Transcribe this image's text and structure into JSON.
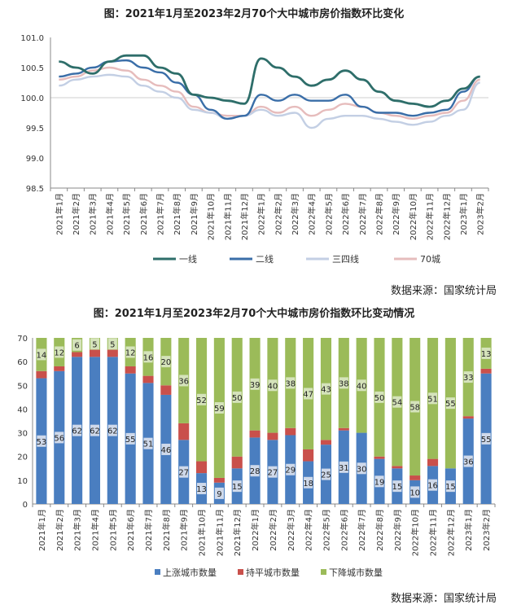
{
  "chart_data": [
    {
      "type": "line",
      "title": "图：2021年1月至2023年2月70个大中城市房价指数环比变化",
      "source": "数据来源：国家统计局",
      "categories": [
        "2021年1月",
        "2021年2月",
        "2021年3月",
        "2021年4月",
        "2021年5月",
        "2021年6月",
        "2021年7月",
        "2021年8月",
        "2021年9月",
        "2021年10月",
        "2021年11月",
        "2021年12月",
        "2022年1月",
        "2022年2月",
        "2022年3月",
        "2022年4月",
        "2022年5月",
        "2022年6月",
        "2022年7月",
        "2022年8月",
        "2022年9月",
        "2022年10月",
        "2022年11月",
        "2022年12月",
        "2023年1月",
        "2023年2月"
      ],
      "yticks": [
        "101.0",
        "100.5",
        "100.0",
        "99.5",
        "99.0",
        "98.5"
      ],
      "ylim": [
        98.5,
        101.0
      ],
      "grid": "y=100 reference line only",
      "legend_position": "bottom",
      "series": [
        {
          "name": "一线",
          "color": "#2e6e6a",
          "width": 2.8,
          "values": [
            100.6,
            100.5,
            100.4,
            100.6,
            100.7,
            100.7,
            100.5,
            100.4,
            100.05,
            100.0,
            99.95,
            99.9,
            100.65,
            100.5,
            100.35,
            100.2,
            100.3,
            100.45,
            100.3,
            100.1,
            99.95,
            99.9,
            99.85,
            99.95,
            100.15,
            100.35
          ]
        },
        {
          "name": "二线",
          "color": "#3a6ea8",
          "width": 2.4,
          "values": [
            100.35,
            100.4,
            100.5,
            100.6,
            100.62,
            100.5,
            100.42,
            100.25,
            100.05,
            99.8,
            99.65,
            99.7,
            100.05,
            99.95,
            100.05,
            99.95,
            99.95,
            100.05,
            99.85,
            99.75,
            99.75,
            99.7,
            99.75,
            99.8,
            100.1,
            100.35
          ]
        },
        {
          "name": "三四线",
          "color": "#c3cfe4",
          "width": 2.4,
          "values": [
            100.2,
            100.3,
            100.35,
            100.38,
            100.35,
            100.2,
            100.1,
            100.0,
            99.8,
            99.75,
            99.65,
            99.7,
            99.8,
            99.7,
            99.75,
            99.5,
            99.65,
            99.7,
            99.7,
            99.65,
            99.6,
            99.55,
            99.6,
            99.7,
            99.8,
            100.25
          ]
        },
        {
          "name": "70城",
          "color": "#e6bcbc",
          "width": 2.4,
          "values": [
            100.3,
            100.35,
            100.45,
            100.5,
            100.45,
            100.3,
            100.2,
            100.1,
            99.85,
            99.75,
            99.7,
            99.7,
            99.85,
            99.75,
            99.85,
            99.7,
            99.8,
            99.9,
            99.85,
            99.75,
            99.7,
            99.65,
            99.7,
            99.75,
            99.95,
            100.3
          ]
        }
      ]
    },
    {
      "type": "bar",
      "stacked": true,
      "title": "图：2021年1月至2023年2月70个大中城市房价指数环比变动情况",
      "source": "数据来源：国家统计局",
      "categories": [
        "2021年1月",
        "2021年2月",
        "2021年3月",
        "2021年4月",
        "2021年5月",
        "2021年6月",
        "2021年7月",
        "2021年8月",
        "2021年9月",
        "2021年10月",
        "2021年11月",
        "2021年12月",
        "2022年1月",
        "2022年2月",
        "2022年3月",
        "2022年4月",
        "2022年5月",
        "2022年6月",
        "2022年7月",
        "2022年8月",
        "2022年9月",
        "2022年10月",
        "2022年11月",
        "2022年12月",
        "2023年1月",
        "2023年2月"
      ],
      "yticks": [
        "70",
        "60",
        "50",
        "40",
        "30",
        "20",
        "10",
        "0"
      ],
      "ylim": [
        0,
        70
      ],
      "legend_position": "bottom",
      "series": [
        {
          "name": "上涨城市数量",
          "color": "#4a7ec0",
          "label_color": "#cfd9ea",
          "show_labels": true,
          "values": [
            53,
            56,
            62,
            62,
            62,
            55,
            51,
            46,
            27,
            13,
            9,
            15,
            28,
            27,
            29,
            18,
            25,
            31,
            30,
            19,
            15,
            10,
            16,
            15,
            36,
            55
          ]
        },
        {
          "name": "持平城市数量",
          "color": "#c9504b",
          "show_labels": false,
          "values": [
            3,
            2,
            2,
            3,
            3,
            3,
            3,
            4,
            7,
            5,
            2,
            5,
            3,
            3,
            3,
            5,
            2,
            1,
            0,
            1,
            1,
            2,
            3,
            0,
            1,
            2
          ]
        },
        {
          "name": "下降城市数量",
          "color": "#9bbb59",
          "label_color": "#d5e3bb",
          "show_labels": true,
          "values": [
            14,
            12,
            6,
            5,
            5,
            12,
            16,
            20,
            36,
            52,
            59,
            50,
            39,
            40,
            38,
            47,
            43,
            38,
            40,
            50,
            54,
            58,
            51,
            55,
            33,
            13
          ]
        }
      ]
    }
  ]
}
